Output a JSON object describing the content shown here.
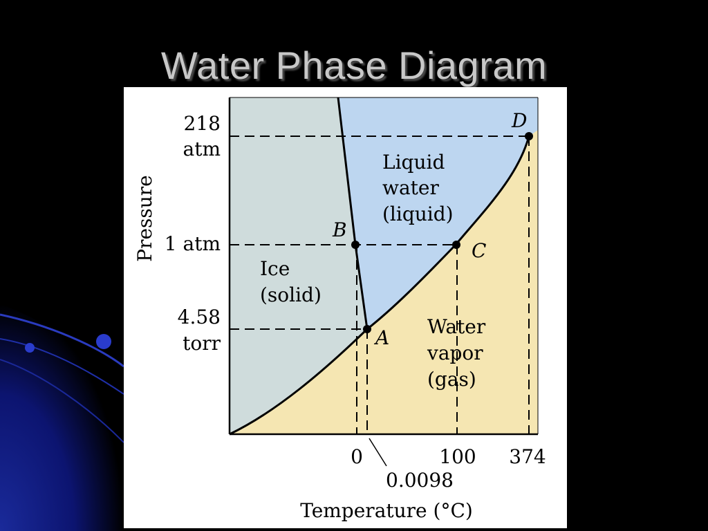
{
  "slide": {
    "title": "Water Phase Diagram"
  },
  "chart_data": {
    "type": "phase-diagram",
    "xlabel": "Temperature (°C)",
    "ylabel": "Pressure",
    "x_ticks": [
      "0",
      "0.0098",
      "100",
      "374"
    ],
    "y_ticks": [
      {
        "line1": "218",
        "line2": "atm"
      },
      {
        "line1": "1 atm",
        "line2": ""
      },
      {
        "line1": "4.58",
        "line2": "torr"
      }
    ],
    "regions": [
      {
        "name": "ice",
        "line1": "Ice",
        "line2": "(solid)",
        "line3": "",
        "color": "#cfdcdc"
      },
      {
        "name": "liquid",
        "line1": "Liquid",
        "line2": "water",
        "line3": "(liquid)",
        "color": "#bdd6f0"
      },
      {
        "name": "vapor",
        "line1": "Water",
        "line2": "vapor",
        "line3": "(gas)",
        "color": "#f5e6b2"
      }
    ],
    "points": [
      {
        "label": "A",
        "temperature": "0.0098",
        "pressure": "4.58 torr"
      },
      {
        "label": "B",
        "temperature": "0",
        "pressure": "1 atm"
      },
      {
        "label": "C",
        "temperature": "100",
        "pressure": "1 atm"
      },
      {
        "label": "D",
        "temperature": "374",
        "pressure": "218 atm"
      }
    ]
  }
}
